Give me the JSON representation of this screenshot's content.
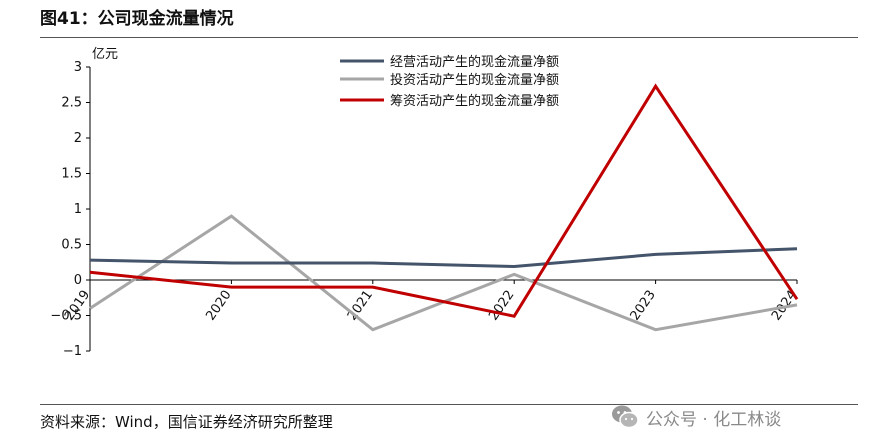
{
  "header": {
    "title": "图41：公司现金流量情况"
  },
  "footer": {
    "source": "资料来源：Wind，国信证券经济研究所整理"
  },
  "watermark": {
    "text": "公众号 · 化工林谈",
    "icon": "wechat-icon"
  },
  "colors": {
    "operating": "#44546A",
    "investing": "#A6A6A6",
    "financing": "#C00000"
  },
  "chart_data": {
    "type": "line",
    "title": "",
    "xlabel": "",
    "ylabel": "亿元",
    "x": [
      "2019",
      "2020",
      "2021",
      "2022",
      "2023",
      "2024"
    ],
    "ylim": [
      -1,
      3
    ],
    "yticks": [
      -1,
      -0.5,
      0,
      0.5,
      1,
      1.5,
      2,
      2.5,
      3
    ],
    "ytick_labels": [
      "−1",
      "−0.5",
      "0",
      "0.5",
      "1",
      "1.5",
      "2",
      "2.5",
      "3"
    ],
    "grid": false,
    "legend_position": "top-center",
    "series": [
      {
        "name": "经营活动产生的现金流量净额",
        "color": "#44546A",
        "values": [
          0.28,
          0.24,
          0.24,
          0.19,
          0.36,
          0.44
        ]
      },
      {
        "name": "投资活动产生的现金流量净额",
        "color": "#A6A6A6",
        "values": [
          -0.4,
          0.9,
          -0.7,
          0.08,
          -0.7,
          -0.35
        ]
      },
      {
        "name": "筹资活动产生的现金流量净额",
        "color": "#C00000",
        "values": [
          0.11,
          -0.1,
          -0.1,
          -0.51,
          2.73,
          -0.27
        ]
      }
    ]
  }
}
